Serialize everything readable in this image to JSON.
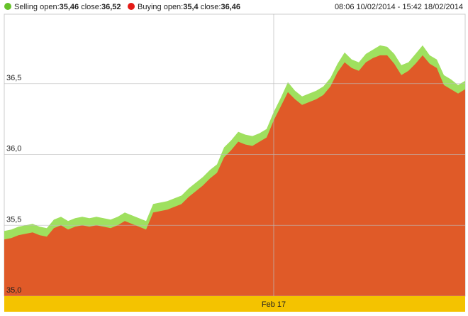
{
  "chart_data": {
    "type": "area",
    "legend_labels": {
      "open": "open:",
      "close": "close:"
    },
    "date_range": "08:06 10/02/2014 - 15:42 18/02/2014",
    "categories": [
      null,
      null,
      null,
      null,
      null,
      null,
      null,
      null,
      null,
      null,
      null,
      null,
      null,
      null,
      null,
      null,
      null,
      null,
      null,
      null,
      null,
      null,
      null,
      null,
      null,
      null,
      null,
      null,
      null,
      null,
      null,
      null,
      null,
      null,
      null,
      null,
      null,
      null,
      "Feb 17",
      null,
      null,
      null,
      null,
      null,
      null,
      null,
      null,
      null,
      null,
      null,
      null,
      null,
      null,
      null,
      null,
      null,
      null,
      null,
      null,
      null,
      null,
      null,
      null,
      null,
      null,
      null
    ],
    "series": [
      {
        "name": "Selling",
        "color": "#9fe05f",
        "legend_color": "#66c22a",
        "open": {
          "value": 35.46,
          "label": "35,46"
        },
        "close": {
          "value": 36.52,
          "label": "36,52"
        },
        "values": [
          35.46,
          35.47,
          35.49,
          35.5,
          35.51,
          35.49,
          35.48,
          35.54,
          35.56,
          35.53,
          35.55,
          35.56,
          35.55,
          35.56,
          35.55,
          35.54,
          35.56,
          35.59,
          35.57,
          35.55,
          35.53,
          35.65,
          35.66,
          35.67,
          35.69,
          35.71,
          35.76,
          35.8,
          35.84,
          35.89,
          35.93,
          36.05,
          36.1,
          36.16,
          36.14,
          36.13,
          36.15,
          36.18,
          36.3,
          36.4,
          36.51,
          36.45,
          36.41,
          36.43,
          36.45,
          36.48,
          36.54,
          36.64,
          36.72,
          36.67,
          36.65,
          36.71,
          36.74,
          36.77,
          36.76,
          36.71,
          36.63,
          36.65,
          36.71,
          36.77,
          36.7,
          36.67,
          36.56,
          36.53,
          36.49,
          36.52
        ]
      },
      {
        "name": "Buying",
        "color": "#e05a28",
        "legend_color": "#e41b17",
        "open": {
          "value": 35.4,
          "label": "35,4"
        },
        "close": {
          "value": 36.46,
          "label": "36,46"
        },
        "values": [
          35.4,
          35.41,
          35.43,
          35.44,
          35.45,
          35.43,
          35.42,
          35.48,
          35.5,
          35.47,
          35.49,
          35.5,
          35.49,
          35.5,
          35.49,
          35.48,
          35.5,
          35.53,
          35.51,
          35.49,
          35.47,
          35.59,
          35.6,
          35.61,
          35.63,
          35.65,
          35.7,
          35.74,
          35.78,
          35.83,
          35.87,
          35.98,
          36.03,
          36.09,
          36.07,
          36.06,
          36.09,
          36.12,
          36.24,
          36.34,
          36.44,
          36.39,
          36.35,
          36.37,
          36.39,
          36.42,
          36.48,
          36.58,
          36.65,
          36.61,
          36.59,
          36.65,
          36.68,
          36.7,
          36.7,
          36.64,
          36.56,
          36.59,
          36.64,
          36.7,
          36.64,
          36.61,
          36.49,
          36.46,
          36.43,
          36.46
        ]
      }
    ],
    "ylim": [
      35,
      36.99
    ],
    "yticks": [
      {
        "value": 35,
        "label": "35,0"
      },
      {
        "value": 35.5,
        "label": "35,5"
      },
      {
        "value": 36,
        "label": "36,0"
      },
      {
        "value": 36.5,
        "label": "36,5"
      }
    ],
    "grid": true
  }
}
